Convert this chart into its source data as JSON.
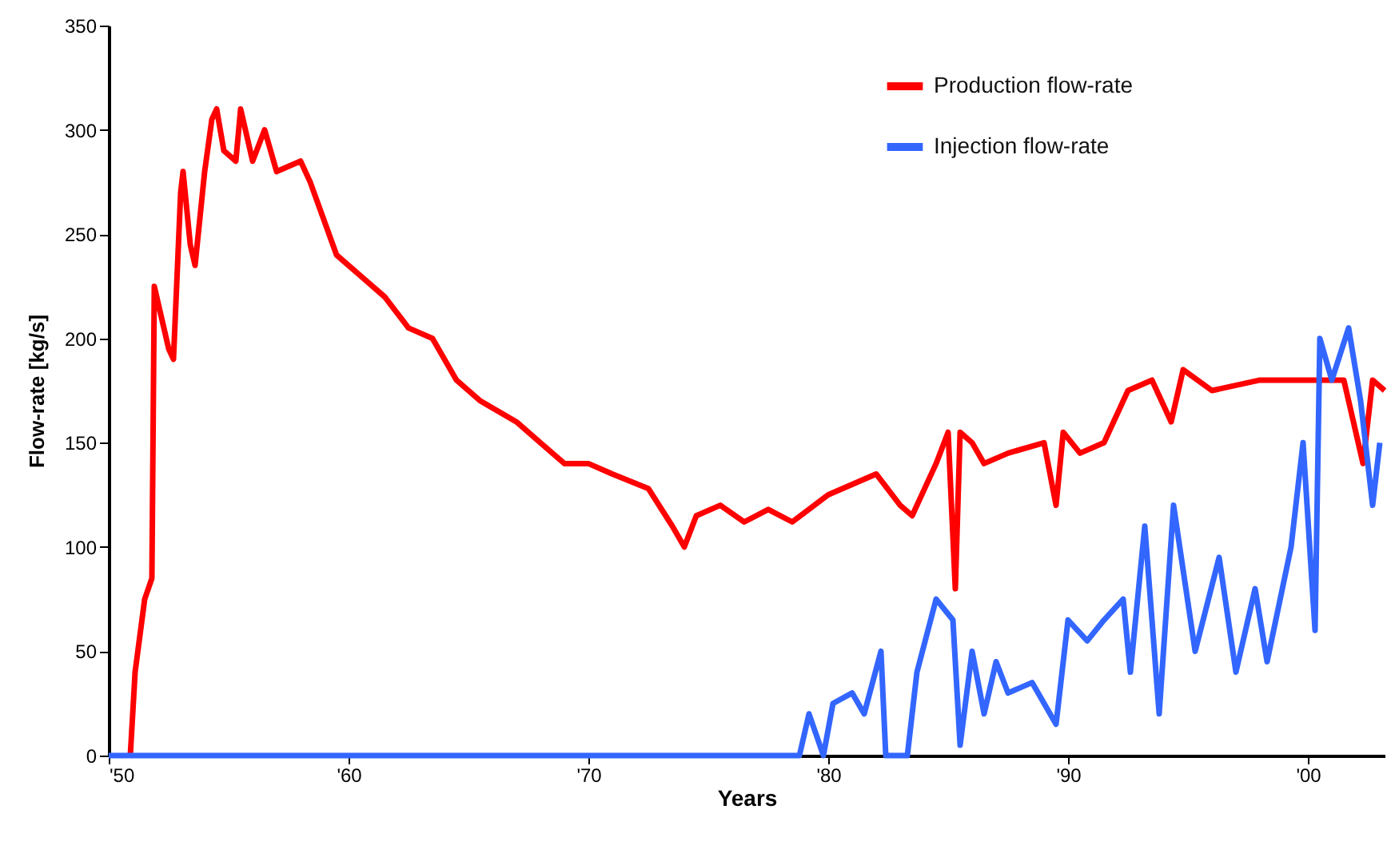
{
  "chart_data": {
    "type": "line",
    "xlabel": "Years",
    "ylabel": "Flow-rate [kg/s]",
    "xlim": [
      1950,
      2003.2
    ],
    "xticks": [
      {
        "value": 1950,
        "label": "'50"
      },
      {
        "value": 1960,
        "label": "'60"
      },
      {
        "value": 1970,
        "label": "'70"
      },
      {
        "value": 1980,
        "label": "'80"
      },
      {
        "value": 1990,
        "label": "'90"
      },
      {
        "value": 2000,
        "label": "'00"
      }
    ],
    "ylim": [
      0,
      350
    ],
    "yticks": [
      0,
      50,
      100,
      150,
      200,
      250,
      300,
      350
    ],
    "legend": "top right",
    "line_style": "solid",
    "marker": "none",
    "series": [
      {
        "name": "Production flow-rate",
        "color": "#ff0000",
        "x": [
          1950.9,
          1951.1,
          1951.5,
          1951.8,
          1951.9,
          1952.2,
          1952.5,
          1952.7,
          1953.0,
          1953.1,
          1953.4,
          1953.6,
          1954.0,
          1954.3,
          1954.5,
          1954.8,
          1955.3,
          1955.5,
          1956.0,
          1956.5,
          1957.0,
          1958.0,
          1958.4,
          1959.5,
          1960.5,
          1961.5,
          1962.5,
          1963.5,
          1964.5,
          1965.5,
          1967.0,
          1968.0,
          1969.0,
          1970.0,
          1971.0,
          1972.5,
          1973.5,
          1974.0,
          1974.5,
          1975.5,
          1976.5,
          1977.5,
          1978.5,
          1980.0,
          1981.0,
          1982.0,
          1983.0,
          1983.5,
          1984.5,
          1985.0,
          1985.3,
          1985.5,
          1986.0,
          1986.5,
          1987.5,
          1989.0,
          1989.5,
          1989.8,
          1990.5,
          1991.5,
          1992.5,
          1993.5,
          1994.3,
          1994.8,
          1996.0,
          1998.0,
          2000.0,
          2001.5,
          2002.3,
          2002.7,
          2003.2
        ],
        "values": [
          0,
          40,
          75,
          85,
          225,
          210,
          195,
          190,
          270,
          280,
          245,
          235,
          280,
          305,
          310,
          290,
          285,
          310,
          285,
          300,
          280,
          285,
          275,
          240,
          230,
          220,
          205,
          200,
          180,
          170,
          160,
          150,
          140,
          140,
          135,
          128,
          110,
          100,
          115,
          120,
          112,
          118,
          112,
          125,
          130,
          135,
          120,
          115,
          140,
          155,
          80,
          155,
          150,
          140,
          145,
          150,
          120,
          155,
          145,
          150,
          175,
          180,
          160,
          185,
          175,
          180,
          180,
          180,
          140,
          180,
          175
        ]
      },
      {
        "name": "Injection flow-rate",
        "color": "#3366ff",
        "x": [
          1950.0,
          1978.8,
          1979.2,
          1979.8,
          1980.2,
          1981.0,
          1981.5,
          1982.2,
          1982.4,
          1983.3,
          1983.7,
          1984.5,
          1985.2,
          1985.5,
          1986.0,
          1986.5,
          1987.0,
          1987.5,
          1988.5,
          1989.5,
          1990.0,
          1990.8,
          1991.5,
          1992.3,
          1992.6,
          1993.2,
          1993.8,
          1994.4,
          1995.3,
          1996.3,
          1997.0,
          1997.8,
          1998.3,
          1999.3,
          1999.8,
          2000.3,
          2000.5,
          2001.0,
          2001.7,
          2002.2,
          2002.7,
          2003.0
        ],
        "values": [
          0,
          0,
          20,
          0,
          25,
          30,
          20,
          50,
          0,
          0,
          40,
          75,
          65,
          5,
          50,
          20,
          45,
          30,
          35,
          15,
          65,
          55,
          65,
          75,
          40,
          110,
          20,
          120,
          50,
          95,
          40,
          80,
          45,
          100,
          150,
          60,
          200,
          180,
          205,
          170,
          120,
          150
        ]
      }
    ]
  }
}
